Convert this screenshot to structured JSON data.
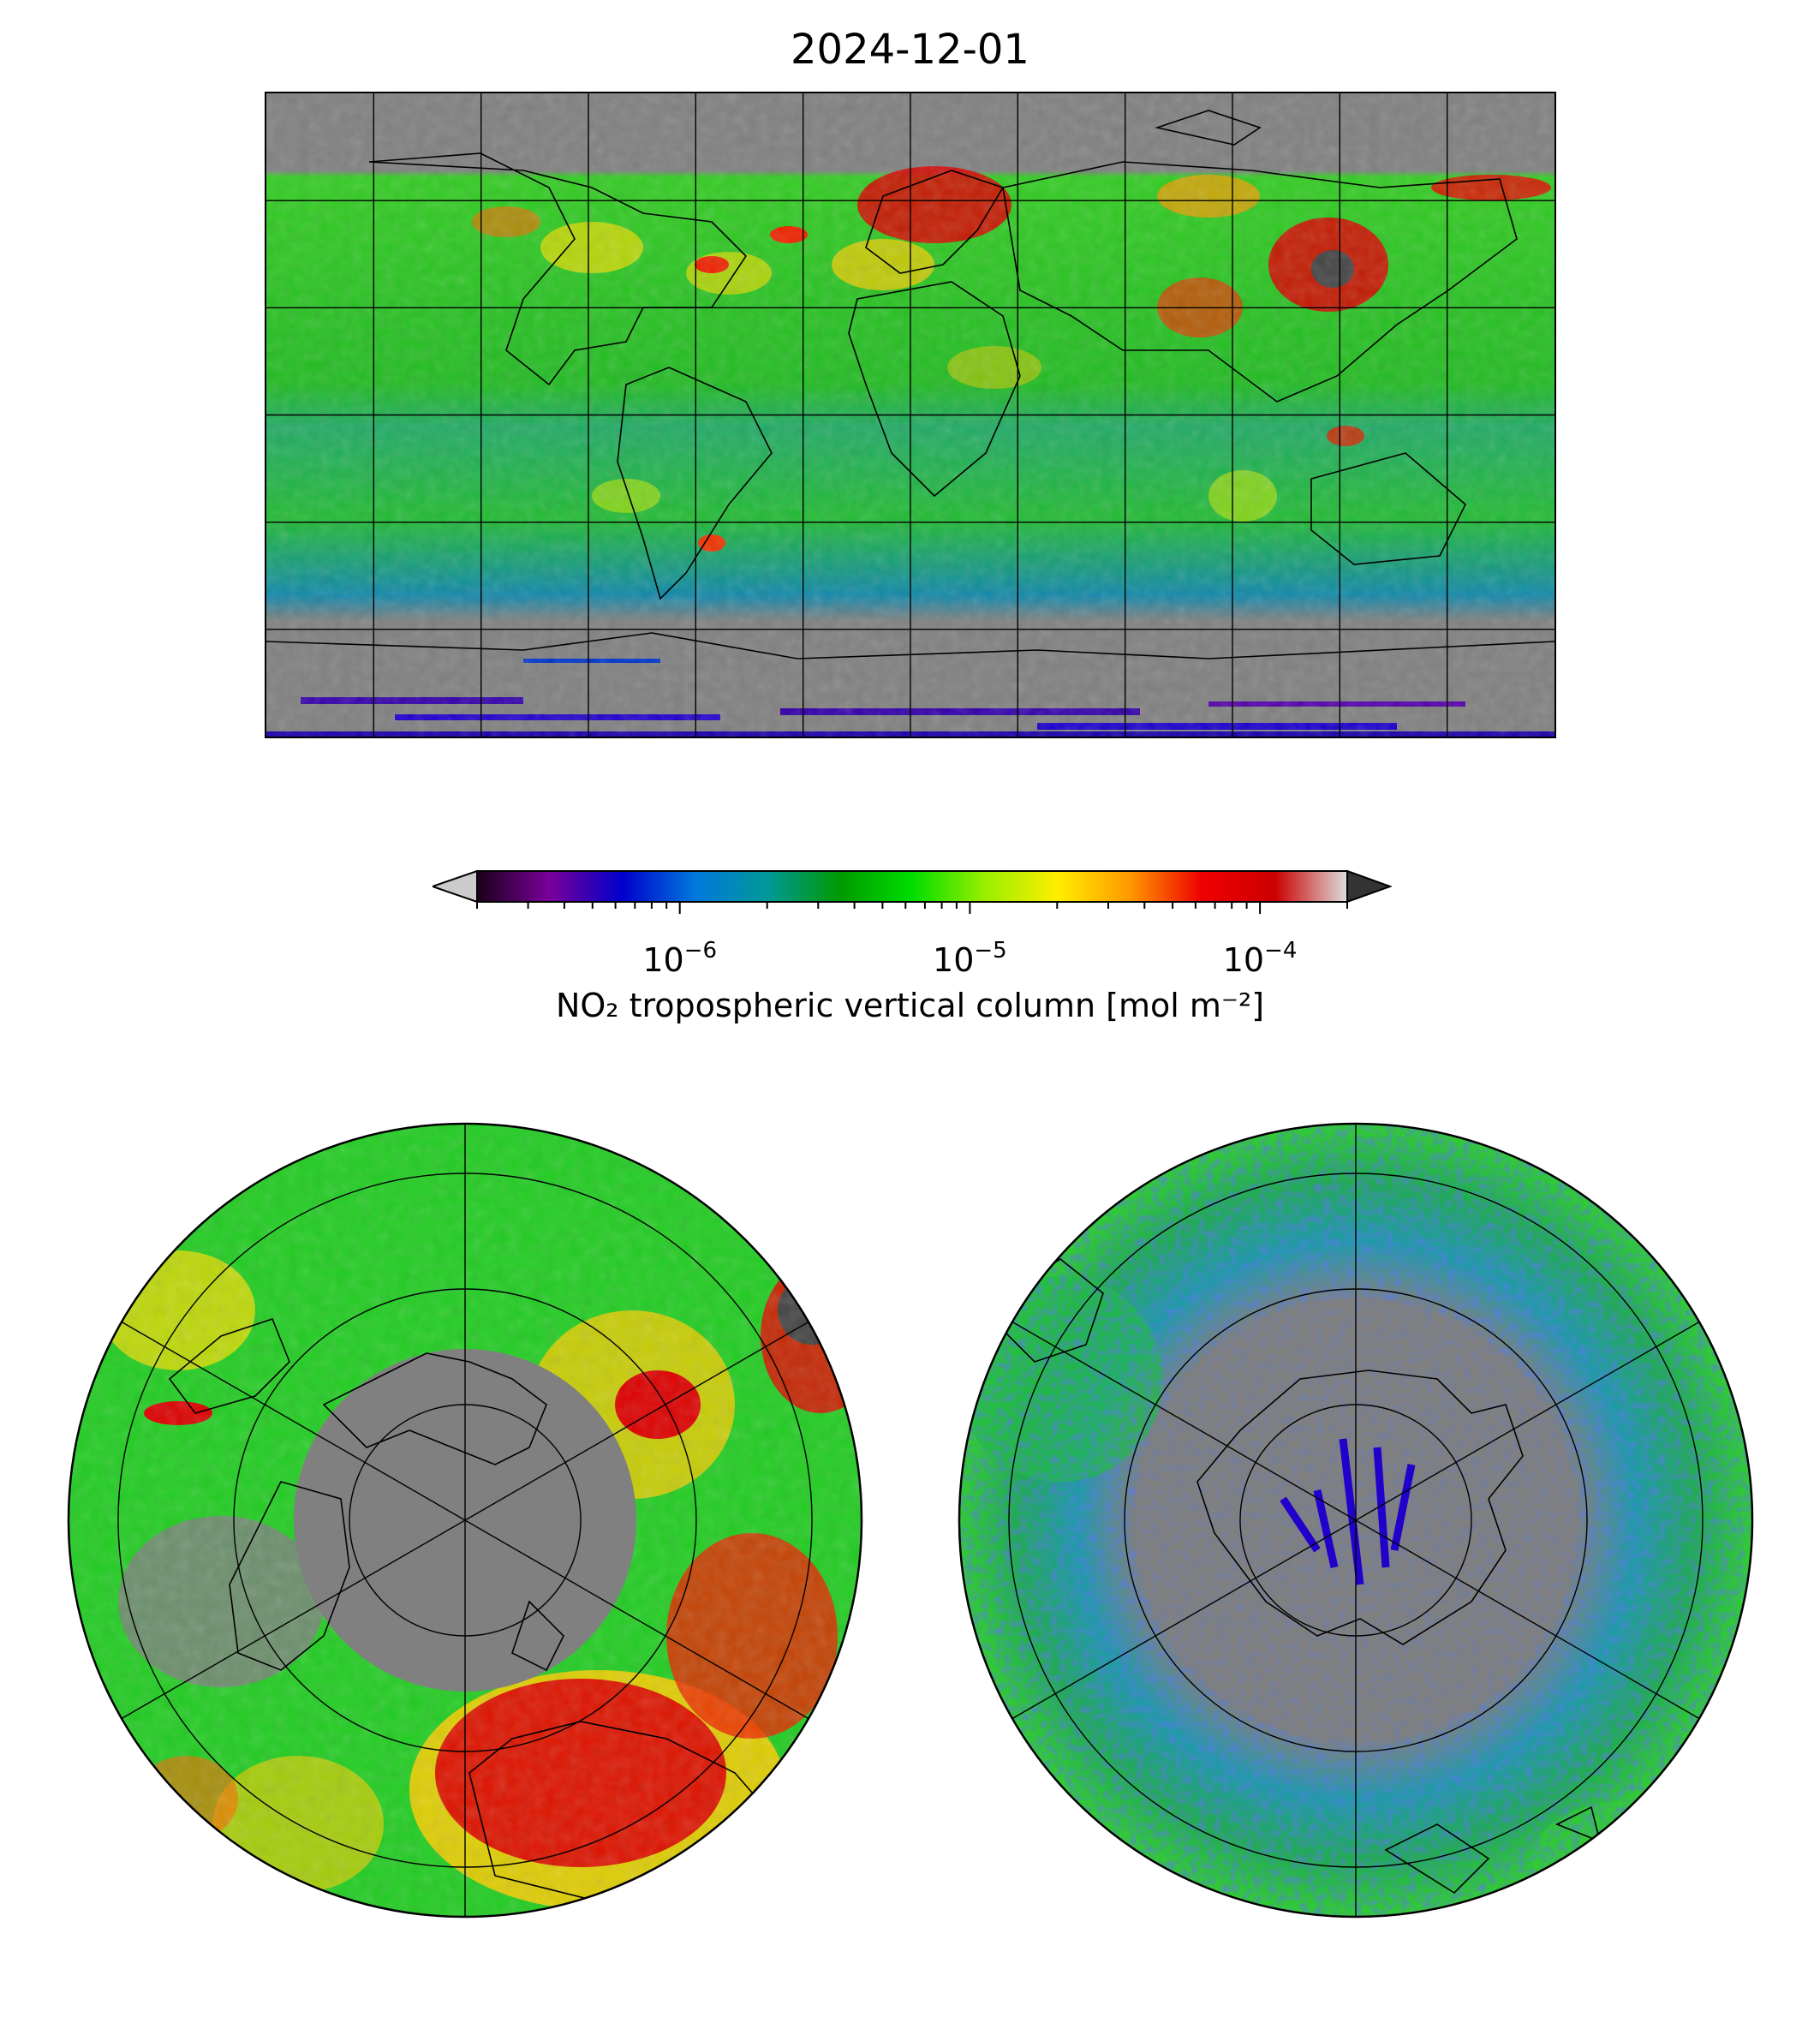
{
  "title": "2024-12-01",
  "colorbar": {
    "label": "NO₂ tropospheric vertical column [mol m⁻²]",
    "scale": "log",
    "range": [
      2e-07,
      0.0002
    ],
    "extend": "both",
    "ticks": [
      {
        "base": "10",
        "exp": "−6",
        "value": 1e-06
      },
      {
        "base": "10",
        "exp": "−5",
        "value": 1e-05
      },
      {
        "base": "10",
        "exp": "−4",
        "value": 0.0001
      }
    ],
    "colors": [
      "#1a001a",
      "#7a0099",
      "#0000cc",
      "#0077dd",
      "#009999",
      "#009900",
      "#00dd00",
      "#99ee00",
      "#ffee00",
      "#ff9900",
      "#ee0000",
      "#cc0000",
      "#dddddd"
    ],
    "under_color": "#cccccc",
    "over_color": "#333333"
  },
  "panels": {
    "world": {
      "projection": "plate-carree",
      "gridlines": true
    },
    "north": {
      "projection": "north-polar-stereographic",
      "gridlines": true
    },
    "south": {
      "projection": "south-polar-stereographic",
      "gridlines": true
    }
  },
  "colors": {
    "no_data": "#808080",
    "coastline": "#000000"
  }
}
